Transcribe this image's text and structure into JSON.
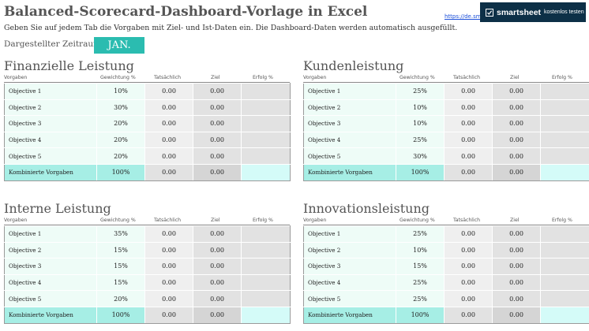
{
  "header": {
    "title": "Balanced-Scorecard-Dashboard-Vorlage in Excel",
    "link_text": "https://de.smartsheet.com",
    "brand": "smartsheet",
    "cta": "kostenlos testen",
    "subtitle": "Geben Sie auf jedem Tab die Vorgaben mit Ziel- und Ist-Daten ein. Die Dashboard-Daten werden automatisch ausgefüllt.",
    "period_label": "Dargestellter Zeitraum:",
    "period_value": "JAN."
  },
  "columns": {
    "vorgaben": "Vorgaben",
    "gewichtung": "Gewichtung %",
    "tatsaechlich": "Tatsächlich",
    "ziel": "Ziel",
    "erfolg": "Erfolg %"
  },
  "colors": {
    "accent": "#2bbcb0",
    "banner": "#0d3047",
    "row_light": "#eefcf7",
    "total_teal": "#a6eee5"
  },
  "panels": [
    {
      "title": "Finanzielle Leistung",
      "rows": [
        {
          "name": "Objective 1",
          "weight": "10%",
          "actual": "0.00",
          "target": "0.00",
          "success": ""
        },
        {
          "name": "Objective 2",
          "weight": "30%",
          "actual": "0.00",
          "target": "0.00",
          "success": ""
        },
        {
          "name": "Objective 3",
          "weight": "20%",
          "actual": "0.00",
          "target": "0.00",
          "success": ""
        },
        {
          "name": "Objective 4",
          "weight": "20%",
          "actual": "0.00",
          "target": "0.00",
          "success": ""
        },
        {
          "name": "Objective 5",
          "weight": "20%",
          "actual": "0.00",
          "target": "0.00",
          "success": ""
        }
      ],
      "total": {
        "name": "Kombinierte Vorgaben",
        "weight": "100%",
        "actual": "0.00",
        "target": "0.00",
        "success": ""
      }
    },
    {
      "title": "Kundenleistung",
      "rows": [
        {
          "name": "Objective 1",
          "weight": "25%",
          "actual": "0.00",
          "target": "0.00",
          "success": ""
        },
        {
          "name": "Objective 2",
          "weight": "10%",
          "actual": "0.00",
          "target": "0.00",
          "success": ""
        },
        {
          "name": "Objective 3",
          "weight": "10%",
          "actual": "0.00",
          "target": "0.00",
          "success": ""
        },
        {
          "name": "Objective 4",
          "weight": "25%",
          "actual": "0.00",
          "target": "0.00",
          "success": ""
        },
        {
          "name": "Objective 5",
          "weight": "30%",
          "actual": "0.00",
          "target": "0.00",
          "success": ""
        }
      ],
      "total": {
        "name": "Kombinierte Vorgaben",
        "weight": "100%",
        "actual": "0.00",
        "target": "0.00",
        "success": ""
      }
    },
    {
      "title": "Interne Leistung",
      "rows": [
        {
          "name": "Objective 1",
          "weight": "35%",
          "actual": "0.00",
          "target": "0.00",
          "success": ""
        },
        {
          "name": "Objective 2",
          "weight": "15%",
          "actual": "0.00",
          "target": "0.00",
          "success": ""
        },
        {
          "name": "Objective 3",
          "weight": "15%",
          "actual": "0.00",
          "target": "0.00",
          "success": ""
        },
        {
          "name": "Objective 4",
          "weight": "15%",
          "actual": "0.00",
          "target": "0.00",
          "success": ""
        },
        {
          "name": "Objective 5",
          "weight": "20%",
          "actual": "0.00",
          "target": "0.00",
          "success": ""
        }
      ],
      "total": {
        "name": "Kombinierte Vorgaben",
        "weight": "100%",
        "actual": "0.00",
        "target": "0.00",
        "success": ""
      }
    },
    {
      "title": "Innovationsleistung",
      "rows": [
        {
          "name": "Objective 1",
          "weight": "25%",
          "actual": "0.00",
          "target": "0.00",
          "success": ""
        },
        {
          "name": "Objective 2",
          "weight": "10%",
          "actual": "0.00",
          "target": "0.00",
          "success": ""
        },
        {
          "name": "Objective 3",
          "weight": "15%",
          "actual": "0.00",
          "target": "0.00",
          "success": ""
        },
        {
          "name": "Objective 4",
          "weight": "25%",
          "actual": "0.00",
          "target": "0.00",
          "success": ""
        },
        {
          "name": "Objective 5",
          "weight": "25%",
          "actual": "0.00",
          "target": "0.00",
          "success": ""
        }
      ],
      "total": {
        "name": "Kombinierte Vorgaben",
        "weight": "100%",
        "actual": "0.00",
        "target": "0.00",
        "success": ""
      }
    }
  ]
}
